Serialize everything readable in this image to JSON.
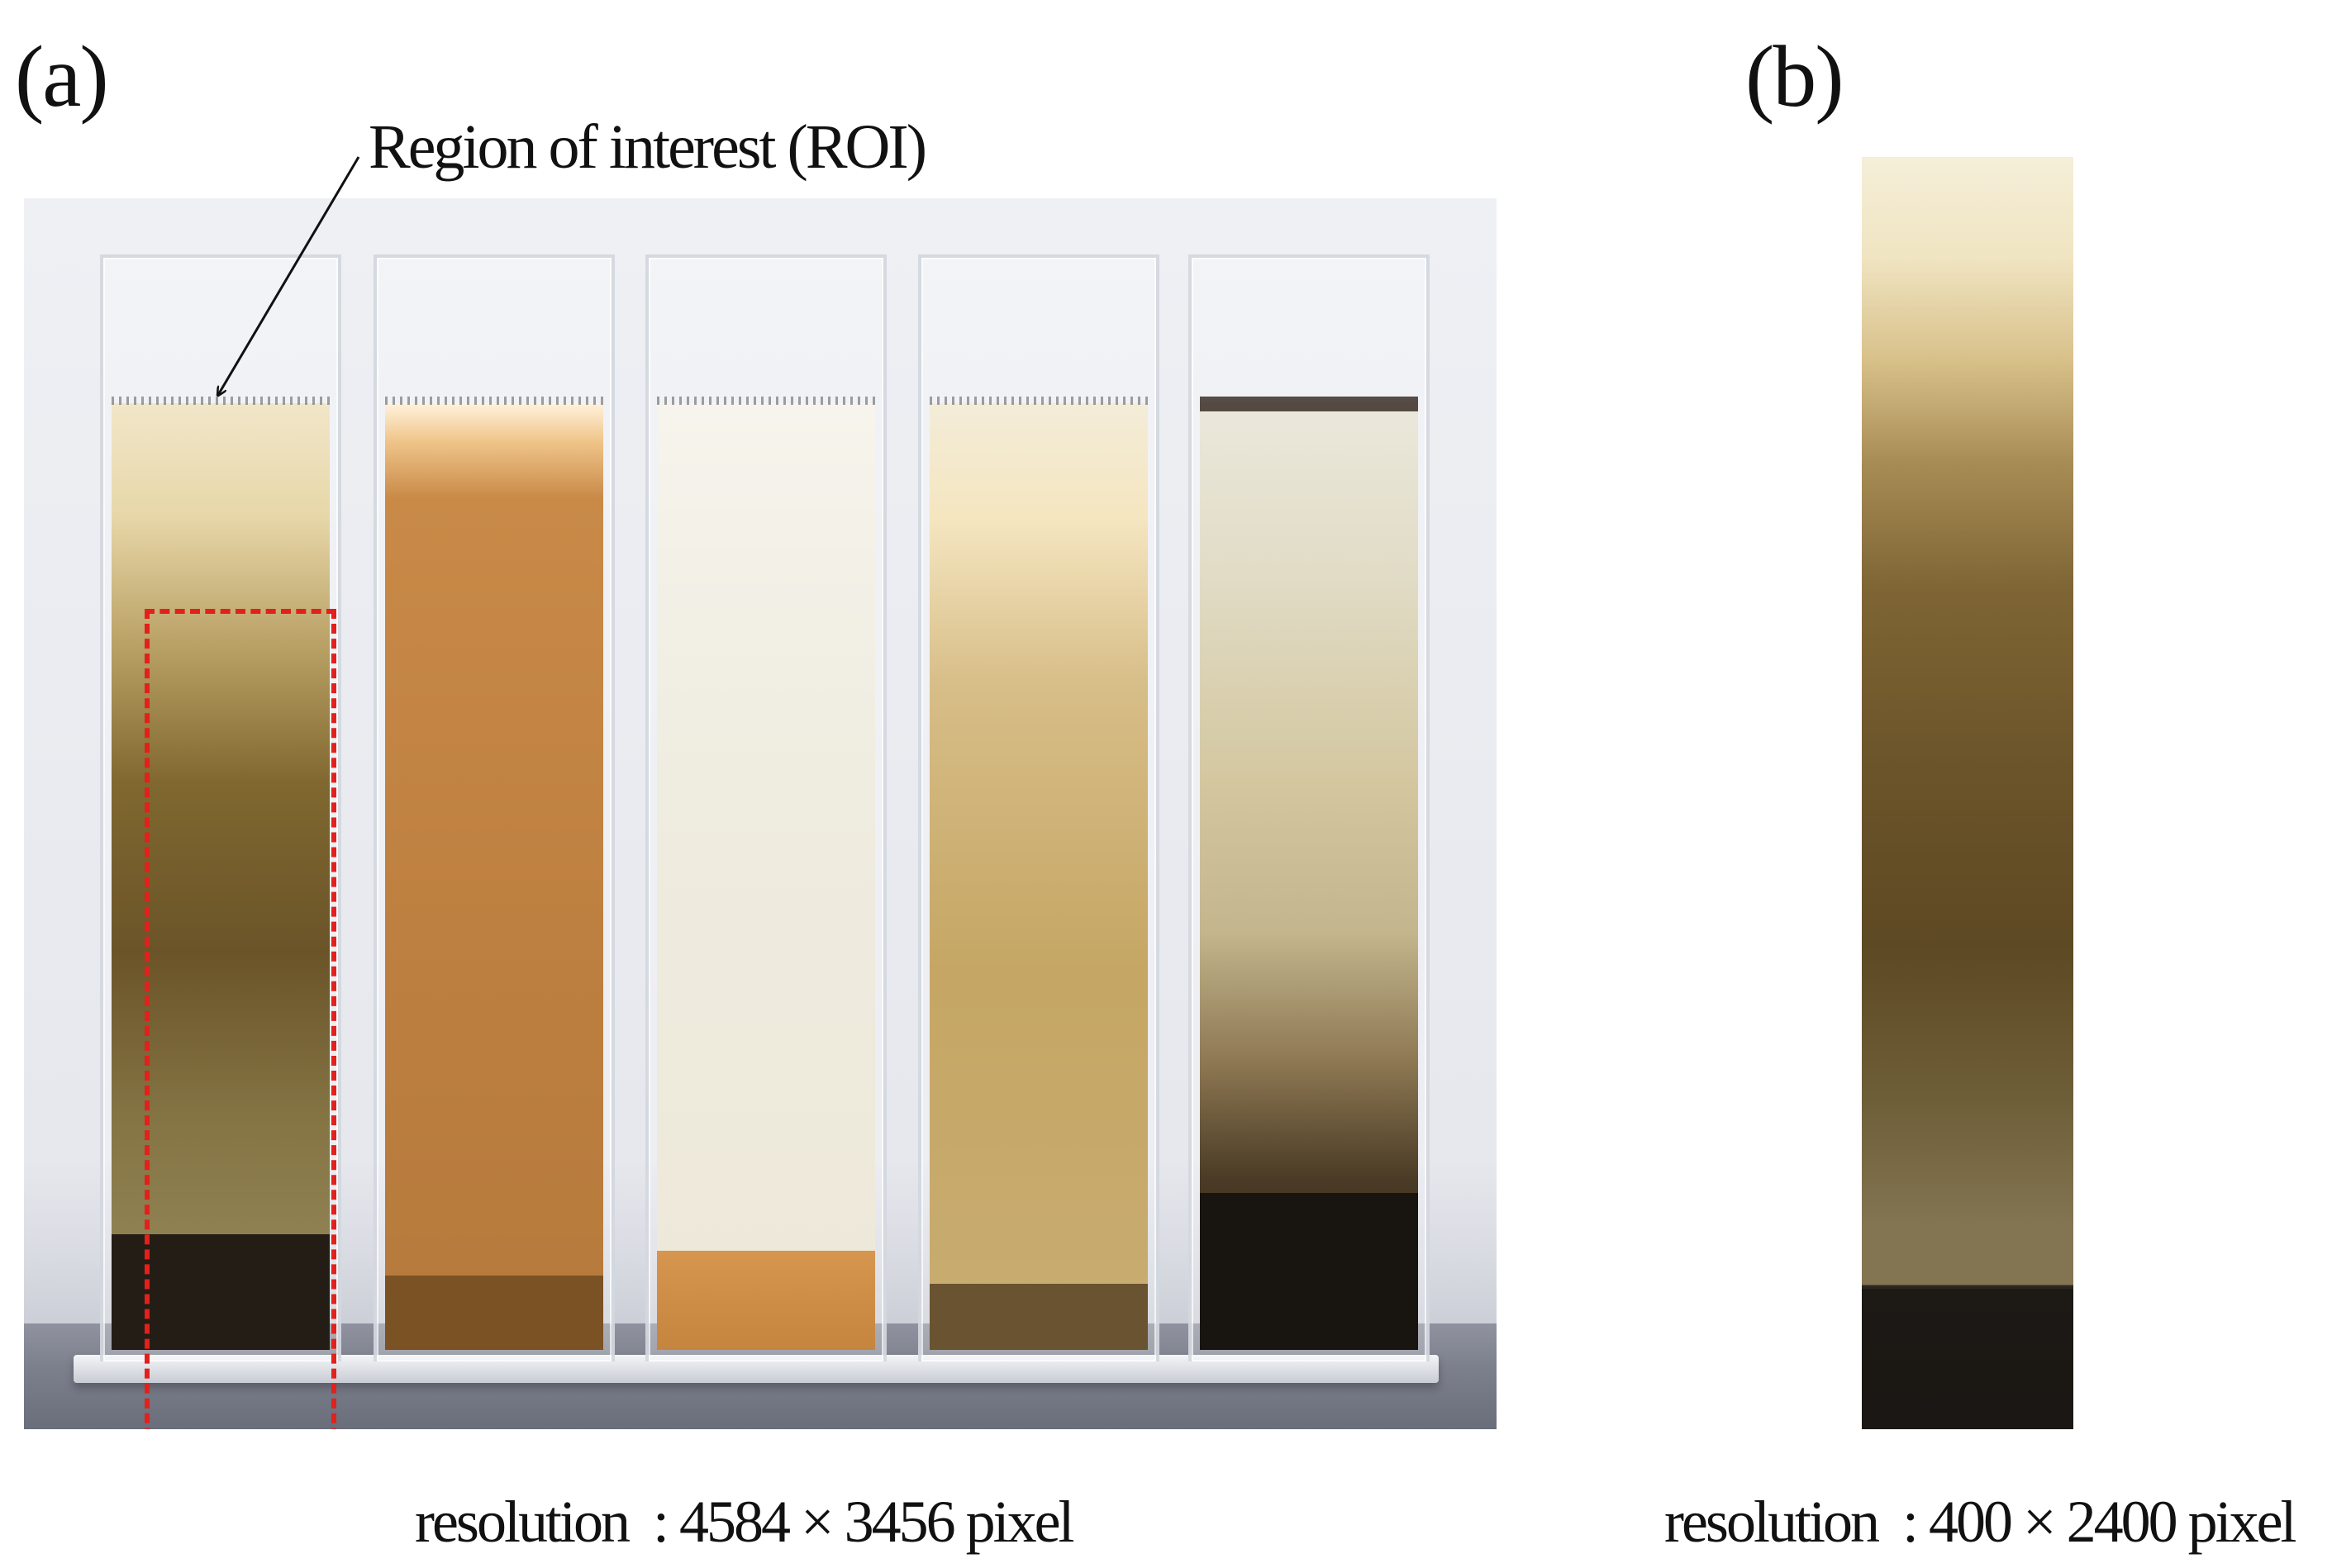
{
  "panels": {
    "a": {
      "label": "(a)",
      "annotation": "Region of interest (ROI)",
      "resolution_text": "resolution  : 4584 × 3456 pixel",
      "tube_count": 5,
      "roi_color": "#e3201b"
    },
    "b": {
      "label": "(b)",
      "resolution_text": "resolution  : 400 × 2400 pixel"
    }
  }
}
